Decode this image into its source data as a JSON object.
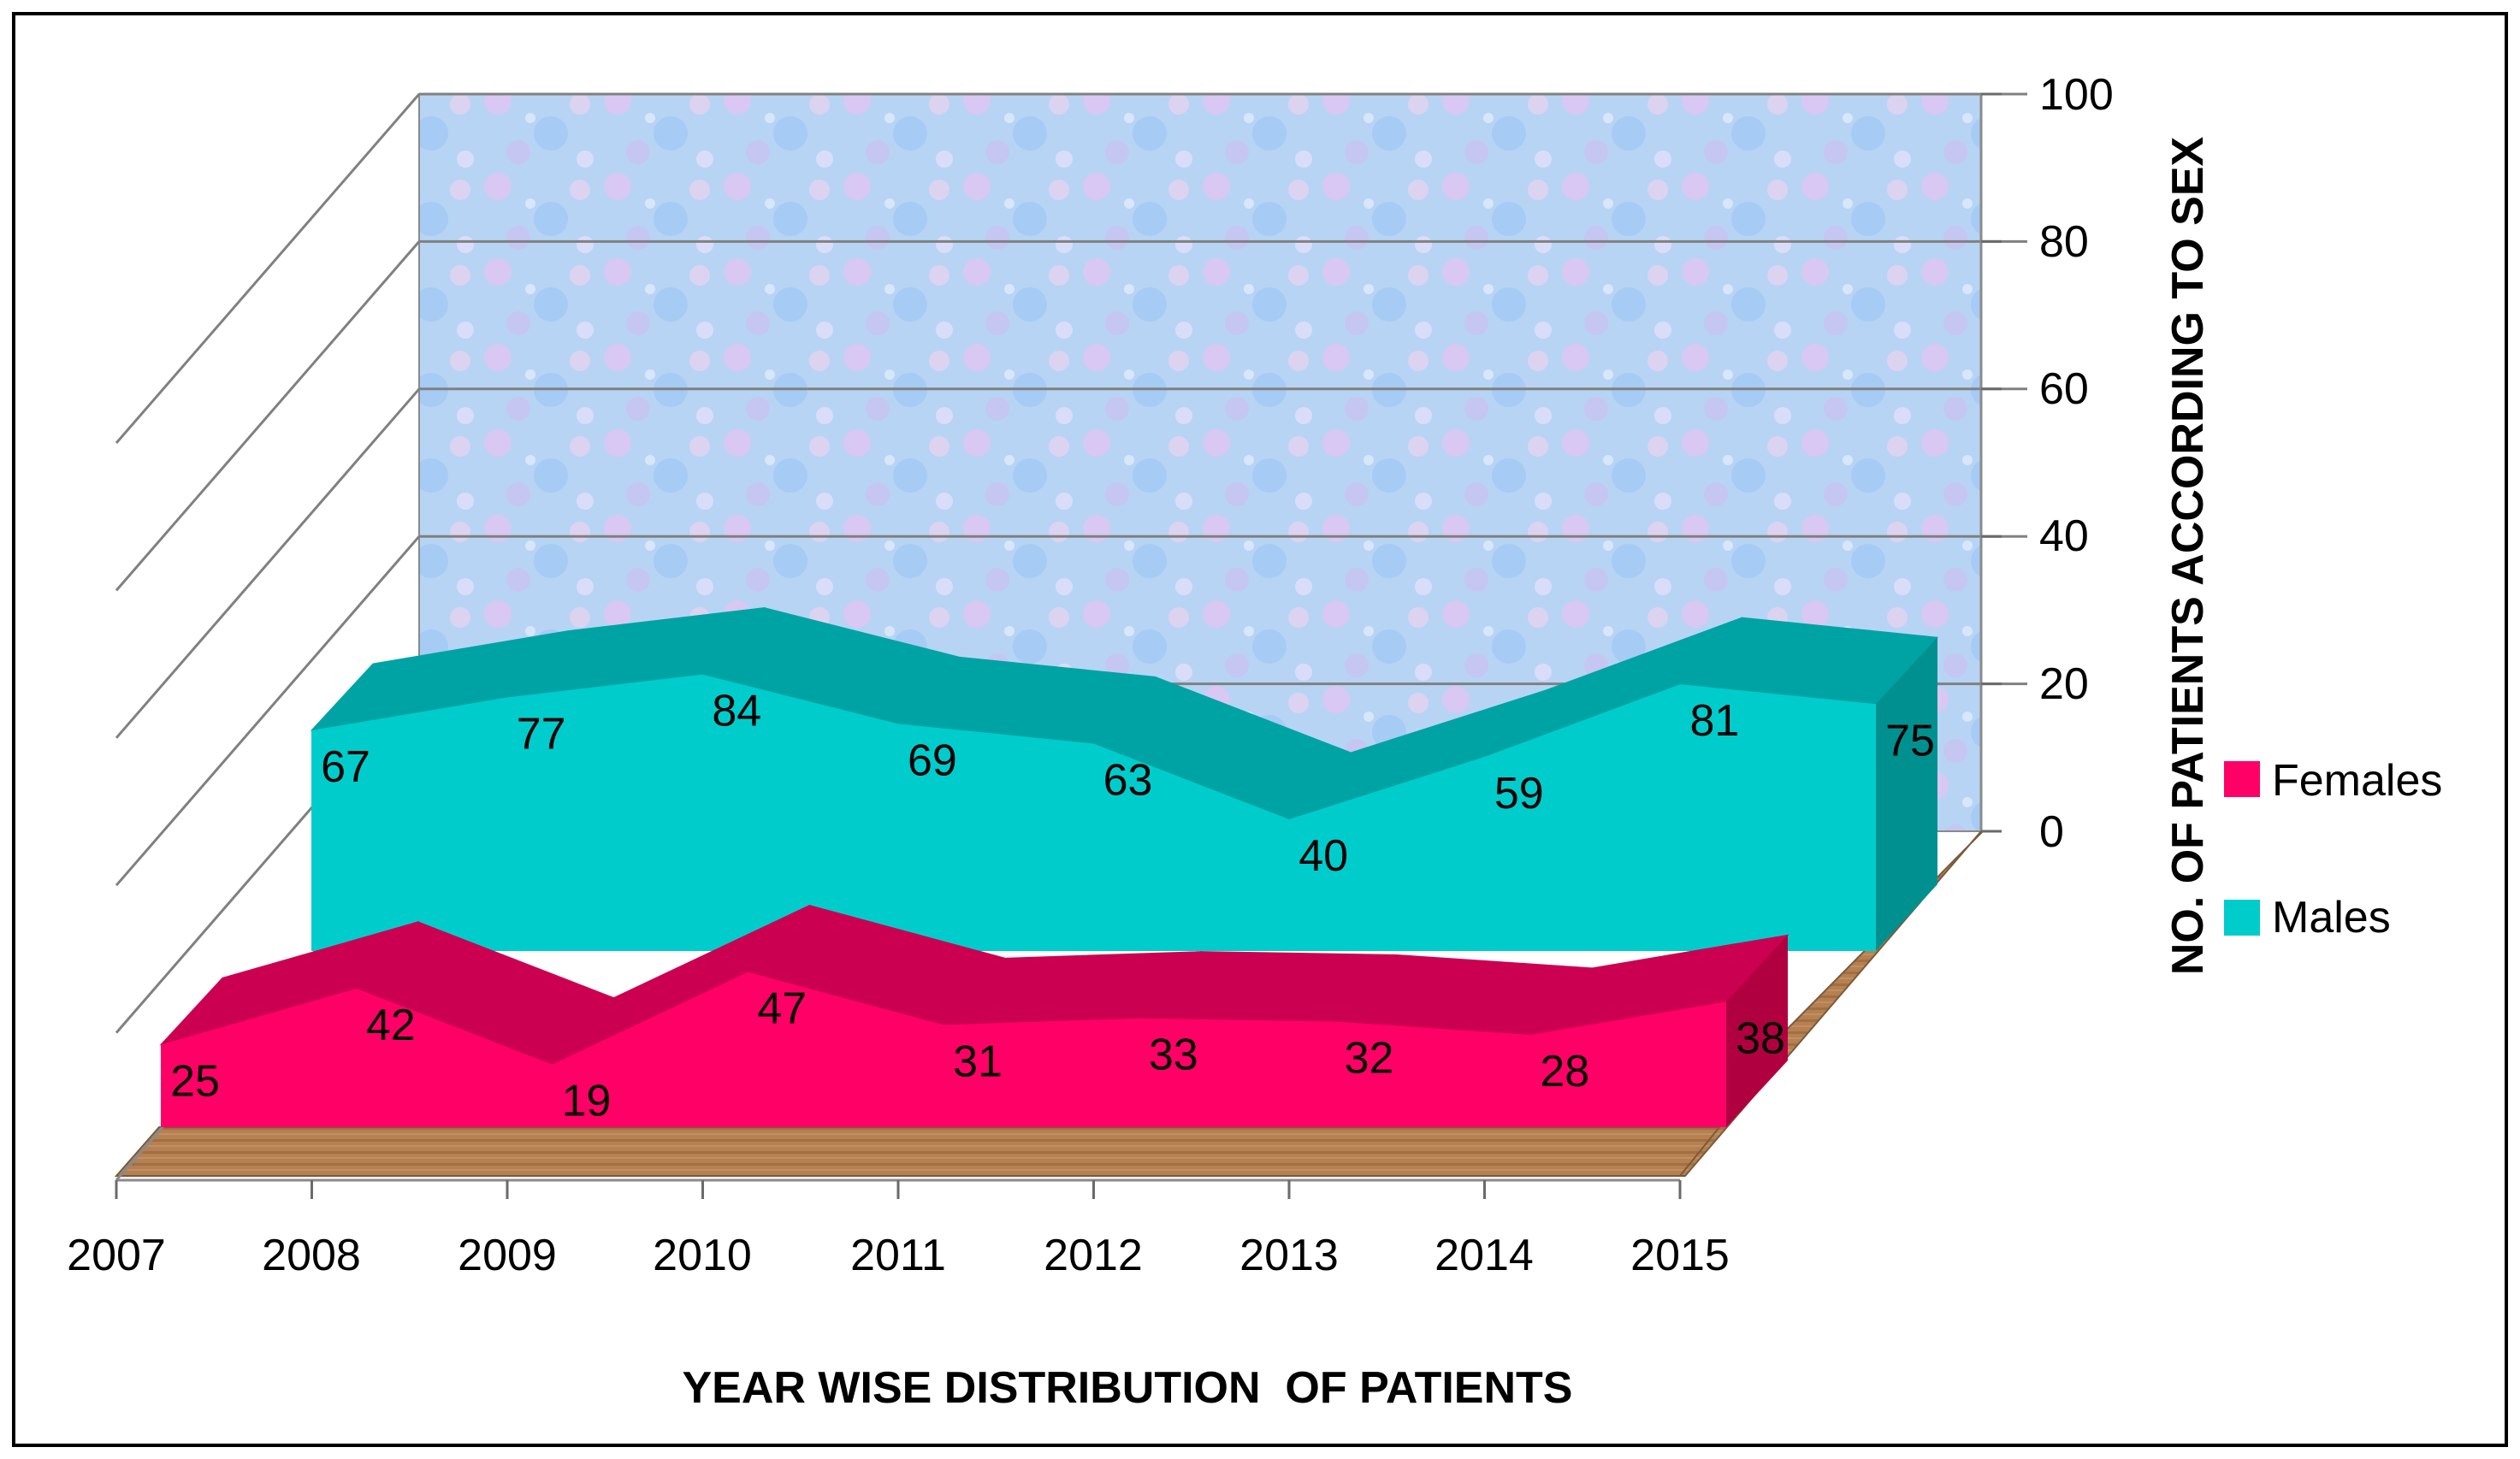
{
  "chart_data": {
    "type": "area",
    "subtype": "3d-area",
    "x": [
      "2007",
      "2008",
      "2009",
      "2010",
      "2011",
      "2012",
      "2013",
      "2014",
      "2015"
    ],
    "series": [
      {
        "name": "Females",
        "color": "#ff0066",
        "values": [
          25,
          42,
          19,
          47,
          31,
          33,
          32,
          28,
          38
        ]
      },
      {
        "name": "Males",
        "color": "#00cccc",
        "values": [
          67,
          77,
          84,
          69,
          63,
          40,
          59,
          81,
          75
        ]
      }
    ],
    "xlabel": "YEAR WISE DISTRIBUTION  OF PATIENTS",
    "ylabel": "NO. OF PATIENTS ACCORDING TO SEX",
    "yticks": [
      "100",
      "80",
      "60",
      "40",
      "20",
      "0"
    ],
    "ylim": [
      0,
      100
    ],
    "legend_position": "right",
    "grid": true
  }
}
